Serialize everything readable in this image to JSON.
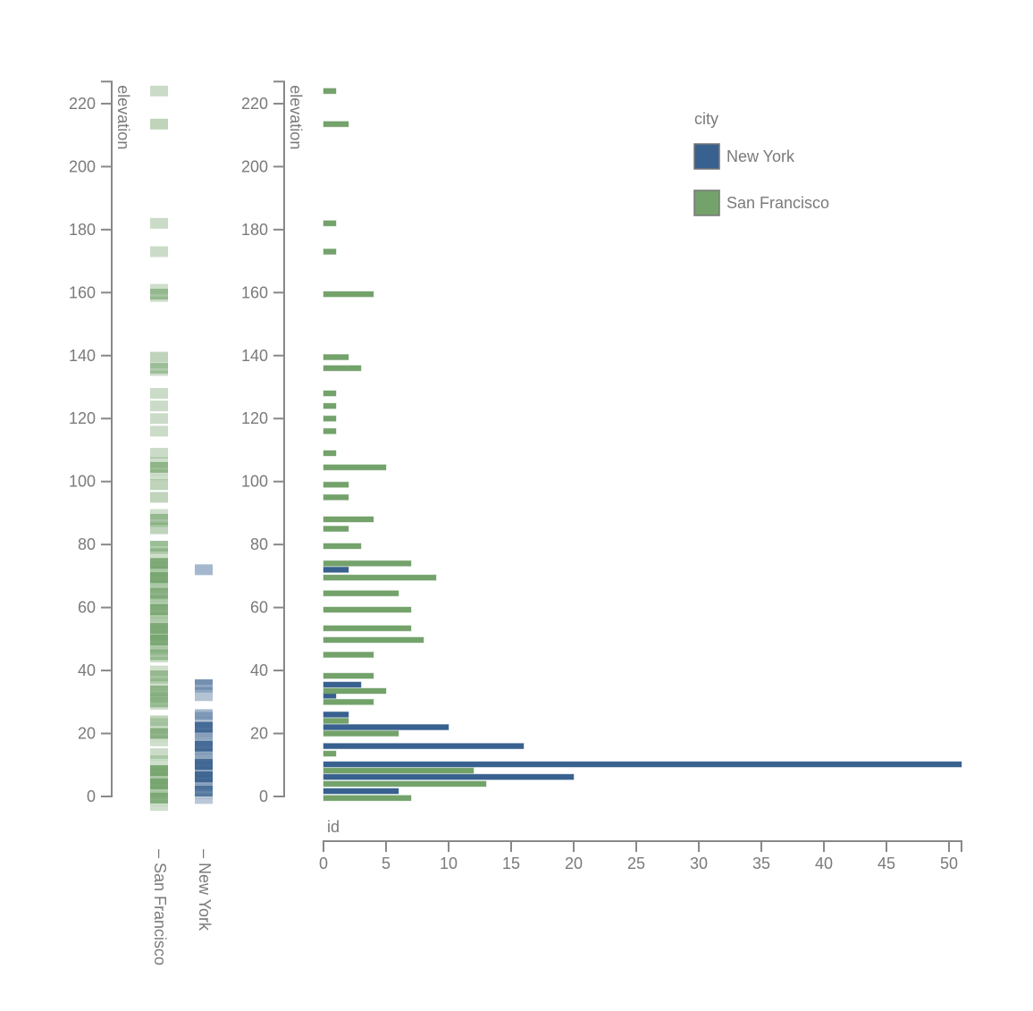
{
  "chart_data": {
    "type": "bar",
    "orientation": "horizontal",
    "title": "",
    "ylabel": "elevation",
    "xlabel": "id",
    "ylim": [
      0,
      227
    ],
    "xlim": [
      0,
      51
    ],
    "yticks": [
      0,
      20,
      40,
      60,
      80,
      100,
      120,
      140,
      160,
      180,
      200,
      220
    ],
    "xticks": [
      0,
      5,
      10,
      15,
      20,
      25,
      30,
      35,
      40,
      45,
      50
    ],
    "strip_categories": [
      "San Francisco",
      "New York"
    ],
    "legend": {
      "title": "city",
      "position": "top-right",
      "entries": [
        {
          "label": "New York",
          "color": "#38618f"
        },
        {
          "label": "San Francisco",
          "color": "#73a26b"
        }
      ]
    },
    "series": [
      {
        "name": "New York",
        "color": "#38618f",
        "points": [
          {
            "elevation": 72,
            "count": 2
          },
          {
            "elevation": 35.5,
            "count": 3
          },
          {
            "elevation": 32,
            "count": 1
          },
          {
            "elevation": 26,
            "count": 2
          },
          {
            "elevation": 22,
            "count": 10
          },
          {
            "elevation": 16,
            "count": 16
          },
          {
            "elevation": 10.2,
            "count": 51
          },
          {
            "elevation": 6.2,
            "count": 20
          },
          {
            "elevation": 1.7,
            "count": 6
          }
        ]
      },
      {
        "name": "San Francisco",
        "color": "#73a26b",
        "points": [
          {
            "elevation": 224,
            "count": 1
          },
          {
            "elevation": 213.5,
            "count": 2
          },
          {
            "elevation": 182,
            "count": 1
          },
          {
            "elevation": 173,
            "count": 1
          },
          {
            "elevation": 159.5,
            "count": 4
          },
          {
            "elevation": 139.5,
            "count": 2
          },
          {
            "elevation": 136,
            "count": 3
          },
          {
            "elevation": 128,
            "count": 1
          },
          {
            "elevation": 124,
            "count": 1
          },
          {
            "elevation": 120,
            "count": 1
          },
          {
            "elevation": 116,
            "count": 1
          },
          {
            "elevation": 109,
            "count": 1
          },
          {
            "elevation": 104.5,
            "count": 5
          },
          {
            "elevation": 99,
            "count": 2
          },
          {
            "elevation": 95,
            "count": 2
          },
          {
            "elevation": 88,
            "count": 4
          },
          {
            "elevation": 85,
            "count": 2
          },
          {
            "elevation": 79.5,
            "count": 3
          },
          {
            "elevation": 74,
            "count": 7
          },
          {
            "elevation": 69.5,
            "count": 9
          },
          {
            "elevation": 64.5,
            "count": 6
          },
          {
            "elevation": 59.3,
            "count": 7
          },
          {
            "elevation": 53.4,
            "count": 7
          },
          {
            "elevation": 49.7,
            "count": 8
          },
          {
            "elevation": 45,
            "count": 4
          },
          {
            "elevation": 38.3,
            "count": 4
          },
          {
            "elevation": 33.5,
            "count": 5
          },
          {
            "elevation": 30,
            "count": 4
          },
          {
            "elevation": 24,
            "count": 2
          },
          {
            "elevation": 20,
            "count": 6
          },
          {
            "elevation": 13.6,
            "count": 1
          },
          {
            "elevation": 8.2,
            "count": 12
          },
          {
            "elevation": 4,
            "count": 13
          },
          {
            "elevation": -0.5,
            "count": 7
          }
        ]
      }
    ]
  }
}
